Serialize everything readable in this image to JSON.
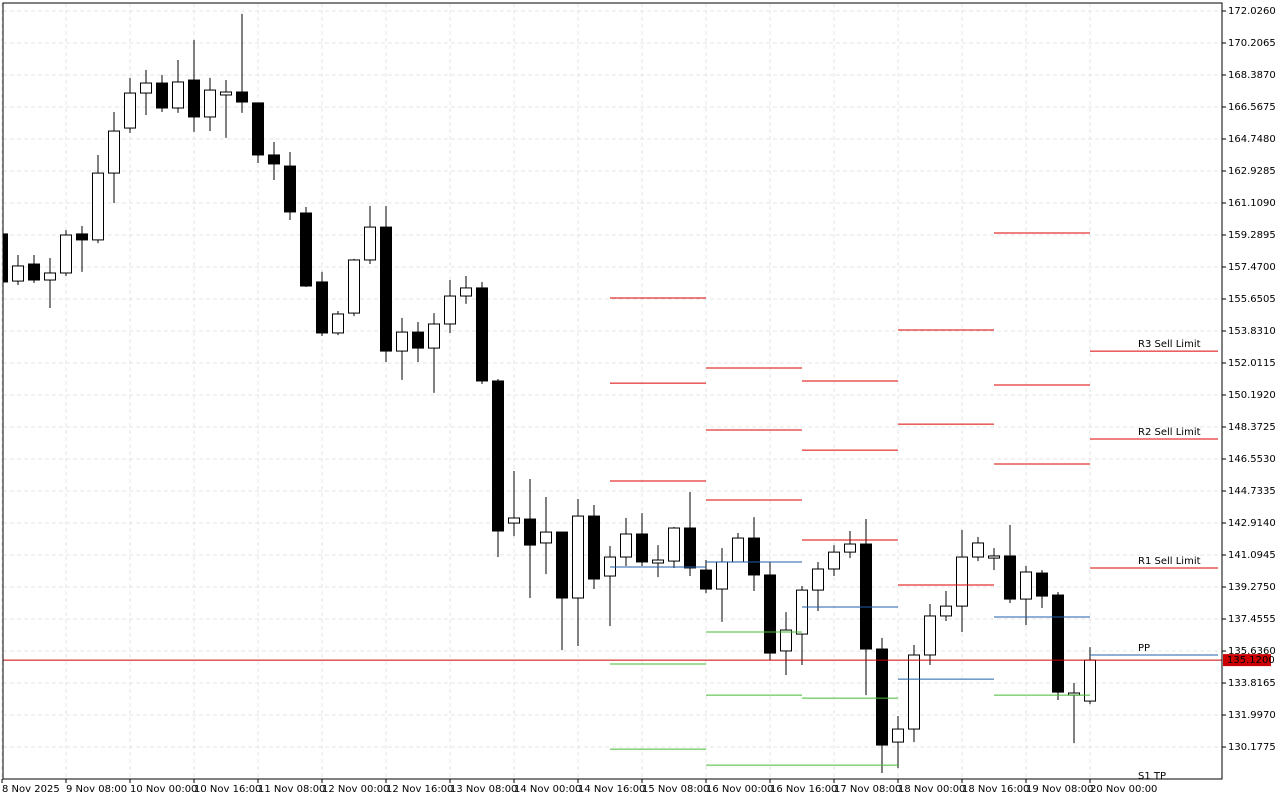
{
  "chart_data": {
    "type": "candlestick",
    "categories": [
      "8 Nov 2025",
      null,
      null,
      null,
      "9 Nov 08:00",
      null,
      null,
      null,
      "10 Nov 00:00",
      null,
      null,
      null,
      "10 Nov 16:00",
      null,
      null,
      null,
      "11 Nov 08:00",
      null,
      null,
      null,
      "12 Nov 00:00",
      null,
      null,
      null,
      "12 Nov 16:00",
      null,
      null,
      null,
      "13 Nov 08:00",
      null,
      null,
      null,
      "14 Nov 00:00",
      null,
      null,
      null,
      "14 Nov 16:00",
      null,
      null,
      null,
      "15 Nov 08:00",
      null,
      null,
      null,
      "16 Nov 00:00",
      null,
      null,
      null,
      "16 Nov 16:00",
      null,
      null,
      null,
      "17 Nov 08:00",
      null,
      null,
      null,
      "18 Nov 00:00",
      null,
      null,
      null,
      "18 Nov 16:00",
      null,
      null,
      null,
      "19 Nov 08:00",
      null,
      null,
      null,
      "20 Nov 00:00"
    ],
    "open": [
      159.35,
      156.67,
      157.64,
      156.73,
      157.13,
      159.35,
      159.01,
      162.81,
      165.37,
      167.36,
      167.93,
      166.51,
      168.1,
      166.0,
      167.25,
      167.42,
      166.8,
      163.84,
      163.21,
      160.54,
      156.62,
      153.72,
      154.85,
      157.87,
      159.74,
      152.69,
      153.77,
      152.86,
      154.23,
      155.82,
      156.28,
      150.99,
      142.91,
      143.14,
      141.78,
      142.4,
      138.65,
      143.31,
      139.9,
      140.98,
      142.29,
      140.64,
      140.75,
      142.63,
      140.24,
      139.16,
      140.7,
      142.06,
      139.96,
      135.64,
      136.6,
      139.1,
      140.3,
      141.26,
      141.72,
      135.75,
      130.46,
      131.2,
      135.41,
      137.63,
      138.19,
      140.98,
      140.92,
      141.04,
      138.59,
      140.07,
      138.82,
      133.13,
      132.79
    ],
    "high": [
      159.35,
      158.15,
      158.15,
      157.98,
      159.57,
      159.8,
      163.84,
      166.28,
      168.22,
      168.67,
      168.39,
      169.24,
      170.38,
      168.22,
      168.1,
      171.86,
      166.8,
      164.58,
      164.01,
      160.88,
      157.19,
      154.97,
      157.93,
      160.94,
      160.94,
      154.57,
      154.34,
      154.85,
      156.73,
      156.96,
      156.62,
      151.1,
      145.87,
      145.42,
      144.39,
      142.4,
      144.28,
      143.94,
      141.61,
      143.2,
      143.48,
      141.66,
      142.69,
      144.68,
      140.81,
      141.49,
      142.35,
      143.25,
      140.7,
      137.85,
      139.33,
      140.7,
      141.66,
      142.46,
      143.14,
      136.38,
      131.94,
      135.98,
      138.31,
      139.05,
      142.52,
      142.12,
      141.49,
      142.8,
      140.47,
      140.24,
      138.99,
      133.82,
      135.86
    ],
    "low": [
      156.62,
      156.45,
      156.56,
      155.14,
      156.96,
      157.19,
      158.83,
      161.11,
      165.09,
      166.11,
      166.28,
      166.23,
      165.15,
      165.2,
      164.81,
      166.23,
      163.38,
      162.42,
      160.14,
      156.33,
      153.55,
      153.6,
      154.68,
      157.64,
      152.07,
      151.05,
      152.07,
      150.31,
      153.72,
      155.37,
      150.82,
      140.98,
      142.17,
      138.65,
      140.01,
      135.69,
      135.92,
      139.16,
      137.06,
      140.47,
      140.47,
      139.84,
      140.36,
      139.9,
      138.93,
      137.29,
      141.04,
      139.05,
      135.12,
      134.27,
      134.84,
      137.91,
      139.9,
      140.92,
      133.13,
      128.7,
      128.98,
      130.46,
      134.84,
      137.34,
      136.72,
      140.75,
      140.24,
      138.37,
      137.11,
      138.08,
      132.85,
      130.4,
      132.62
    ],
    "close": [
      156.62,
      157.53,
      156.73,
      157.13,
      159.29,
      159.01,
      162.81,
      165.2,
      167.36,
      167.93,
      166.51,
      167.99,
      166.0,
      167.53,
      167.42,
      166.85,
      163.84,
      163.33,
      160.6,
      156.39,
      153.72,
      154.8,
      157.87,
      159.74,
      152.69,
      153.77,
      152.86,
      154.23,
      155.82,
      156.28,
      150.99,
      142.46,
      143.2,
      141.66,
      142.4,
      138.65,
      143.31,
      139.73,
      140.98,
      142.29,
      140.7,
      140.81,
      142.63,
      140.36,
      139.16,
      140.7,
      142.06,
      139.96,
      135.52,
      136.83,
      139.1,
      140.3,
      141.26,
      141.72,
      135.75,
      130.29,
      131.2,
      135.41,
      137.63,
      138.19,
      140.98,
      141.78,
      141.04,
      138.59,
      140.13,
      138.76,
      133.3,
      133.25,
      135.12
    ],
    "up_color": "#ffffff",
    "down_color": "#000000",
    "ylim": [
      128.36,
      172.48
    ],
    "yticks": [
      {
        "value": 172.026,
        "label": "172.0260"
      },
      {
        "value": 170.2065,
        "label": "170.2065"
      },
      {
        "value": 168.387,
        "label": "168.3870"
      },
      {
        "value": 166.5675,
        "label": "166.5675"
      },
      {
        "value": 164.748,
        "label": "164.7480"
      },
      {
        "value": 162.9285,
        "label": "162.9285"
      },
      {
        "value": 161.109,
        "label": "161.1090"
      },
      {
        "value": 159.2895,
        "label": "159.2895"
      },
      {
        "value": 157.47,
        "label": "157.4700"
      },
      {
        "value": 155.6505,
        "label": "155.6505"
      },
      {
        "value": 153.831,
        "label": "153.8310"
      },
      {
        "value": 152.0115,
        "label": "152.0115"
      },
      {
        "value": 150.192,
        "label": "150.1920"
      },
      {
        "value": 148.3725,
        "label": "148.3725"
      },
      {
        "value": 146.553,
        "label": "146.5530"
      },
      {
        "value": 144.7335,
        "label": "144.7335"
      },
      {
        "value": 142.914,
        "label": "142.9140"
      },
      {
        "value": 141.0945,
        "label": "141.0945"
      },
      {
        "value": 139.275,
        "label": "139.2750"
      },
      {
        "value": 137.4555,
        "label": "137.4555"
      },
      {
        "value": 135.636,
        "label": "135.6360"
      },
      {
        "value": 133.8165,
        "label": "133.8165"
      },
      {
        "value": 131.997,
        "label": "131.9970"
      },
      {
        "value": 130.1775,
        "label": "130.1775"
      }
    ],
    "grid": true,
    "current_price": {
      "value": 135.12,
      "label": "135.1200",
      "color": "#cc0000"
    },
    "pivot_colors": {
      "r": "#dd0000",
      "pp": "#1f5fa8",
      "s": "#44bb33"
    },
    "pivots": [
      {
        "x": [
          38,
          44
        ],
        "r": [
          145.3,
          150.87,
          155.71
        ],
        "pp": 140.41,
        "s": [
          134.9,
          130.06
        ]
      },
      {
        "x": [
          44,
          50
        ],
        "r": [
          144.22,
          148.2,
          151.73
        ],
        "pp": 140.7,
        "s": [
          136.72,
          133.13,
          129.15
        ]
      },
      {
        "x": [
          50,
          56
        ],
        "r": [
          141.95,
          147.06,
          150.99
        ],
        "pp": 138.14,
        "s": [
          132.96,
          129.15
        ]
      },
      {
        "x": [
          56,
          62
        ],
        "r": [
          139.39,
          148.54,
          153.89
        ],
        "pp": 134.04,
        "s": []
      },
      {
        "x": [
          62,
          68
        ],
        "r": [
          146.27,
          150.76,
          159.4
        ],
        "pp": 137.57,
        "s": [
          133.13
        ]
      },
      {
        "x": [
          68,
          76
        ],
        "r": [
          140.36,
          147.69,
          152.69
        ],
        "pp": 135.41,
        "s": [
          128.07
        ],
        "labels": {
          "r": [
            "R1 Sell Limit",
            "R2 Sell Limit",
            "R3 Sell Limit"
          ],
          "pp": "PP",
          "s": [
            "S1 TP"
          ]
        }
      }
    ]
  }
}
